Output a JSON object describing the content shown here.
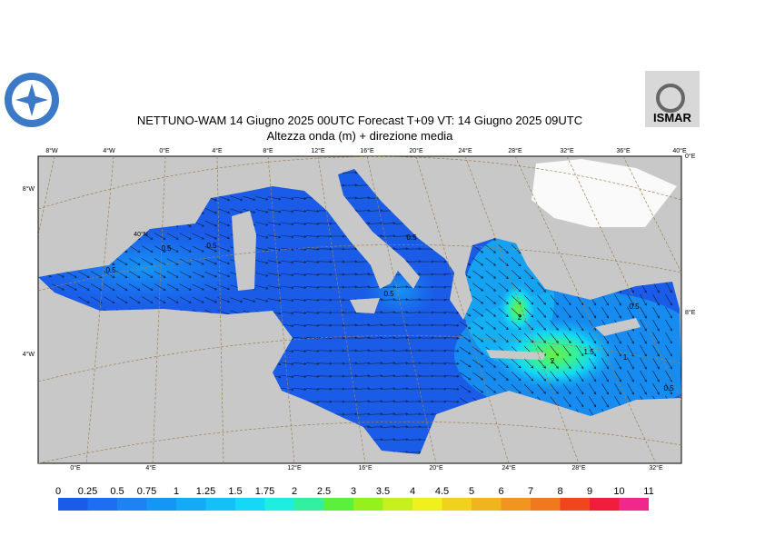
{
  "header": {
    "title": "NETTUNO-WAM  14   Giugno  2025 00UTC Forecast T+09 VT: 14   Giugno  2025 09UTC",
    "subtitle": "Altezza onda (m) + direzione media",
    "logo_text": "ISMAR"
  },
  "map": {
    "lon_labels_top": [
      "8°W",
      "4°W",
      "0°E",
      "4°E",
      "8°E",
      "12°E",
      "16°E",
      "20°E",
      "24°E",
      "28°E",
      "32°E",
      "36°E",
      "40°E"
    ],
    "lon_labels_bottom": [
      "0°E",
      "4°E",
      "12°E",
      "16°E",
      "20°E",
      "24°E",
      "28°E",
      "32°E"
    ],
    "lat_labels_left": [
      "8°W",
      "4°W"
    ],
    "lat_labels_right": [
      "0°E",
      "8°E"
    ],
    "lat_label_inner": "40°N",
    "contour_labels": [
      "0.5",
      "0.5",
      "0.5",
      "0.5",
      "0.5",
      "2",
      "2",
      "1.5",
      "1",
      "0.5",
      "0.5"
    ]
  },
  "colorbar": {
    "levels": [
      0,
      0.25,
      0.5,
      0.75,
      1,
      1.25,
      1.5,
      1.75,
      2,
      2.5,
      3,
      3.5,
      4,
      4.5,
      5,
      6,
      7,
      8,
      9,
      10,
      11
    ],
    "colors": [
      "#1a5ce8",
      "#1e6ef2",
      "#1e82f5",
      "#1496f5",
      "#14aaf5",
      "#14c0f5",
      "#14d8f5",
      "#1eeee0",
      "#32f0a0",
      "#5af03c",
      "#96f01e",
      "#c8f01e",
      "#f0f01e",
      "#f0d21e",
      "#f0b41e",
      "#f0961e",
      "#f0781e",
      "#f0461e",
      "#f01e3c",
      "#f0288c",
      "#f03cc8"
    ]
  }
}
